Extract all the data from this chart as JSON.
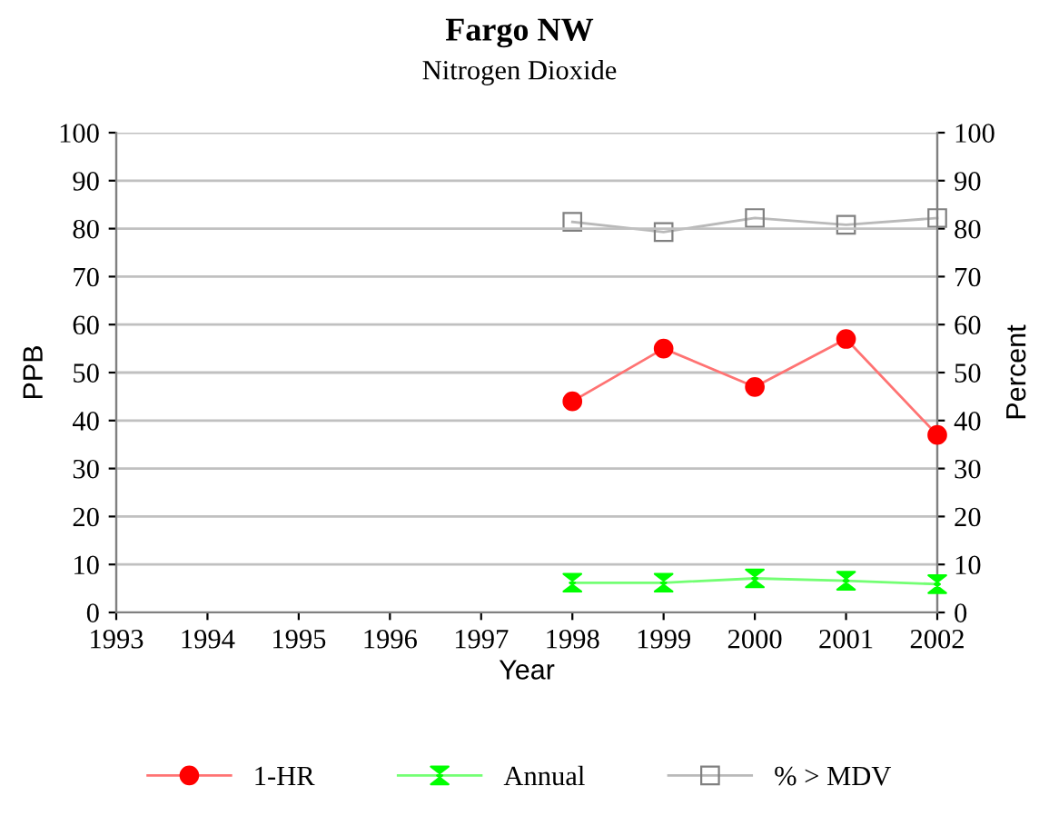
{
  "chart_data": {
    "type": "line",
    "title": "Fargo NW",
    "subtitle": "Nitrogen Dioxide",
    "xlabel": "Year",
    "ylabel": "PPB",
    "y2label": "Percent",
    "x": [
      1998,
      1999,
      2000,
      2001,
      2002
    ],
    "series": [
      {
        "name": "1-HR",
        "color": "#ff0000",
        "marker": "circle",
        "values": [
          44,
          55,
          47,
          57,
          37
        ]
      },
      {
        "name": "Annual",
        "color": "#00ff00",
        "marker": "triangle",
        "values": [
          6.2,
          6.2,
          7.1,
          6.6,
          5.9
        ]
      },
      {
        "name": "% > MDV",
        "color": "#808080",
        "marker": "square",
        "axis": "y2",
        "values": [
          81.4,
          79.3,
          82.2,
          80.8,
          82.2
        ]
      }
    ],
    "xlim": [
      1993,
      2002
    ],
    "xticks": [
      1993,
      1994,
      1995,
      1996,
      1997,
      1998,
      1999,
      2000,
      2001,
      2002
    ],
    "ylim": [
      0,
      100
    ],
    "yticks": [
      0,
      10,
      20,
      30,
      40,
      50,
      60,
      70,
      80,
      90,
      100
    ],
    "y2lim": [
      0,
      100
    ],
    "y2ticks": [
      0,
      10,
      20,
      30,
      40,
      50,
      60,
      70,
      80,
      90,
      100
    ],
    "grid": "y",
    "legend": "bottom",
    "line_style": "solid"
  }
}
